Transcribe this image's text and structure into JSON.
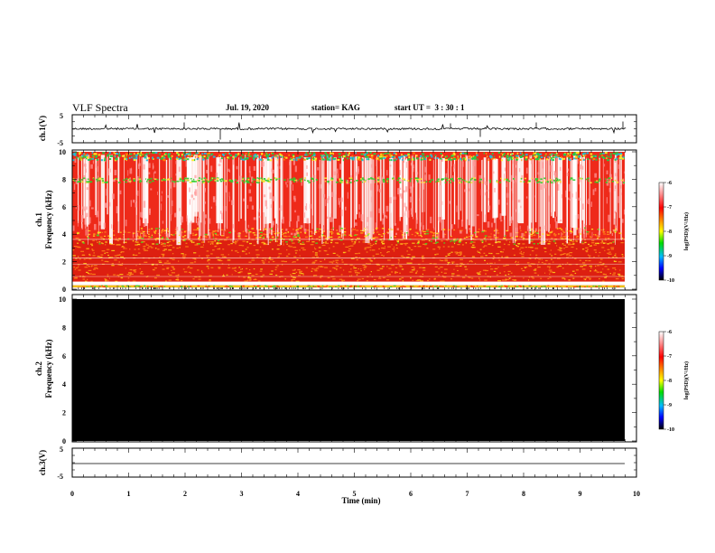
{
  "header": {
    "title": "VLF Spectra",
    "date": "Jul. 19, 2020",
    "station": "station= KAG",
    "start": "start UT =  3 : 30 : 1"
  },
  "chart_data": [
    {
      "type": "line",
      "panel": "ch1-waveform",
      "ylabel": "ch.1(V)",
      "yticks": [
        "5",
        "-5"
      ],
      "ylim": [
        -5,
        5
      ],
      "baseline": 0
    },
    {
      "type": "heatmap",
      "panel": "ch1-spectrogram",
      "ylabel_line1": "ch.1",
      "ylabel_line2": "Frequency (kHz)",
      "yticks": [
        "0",
        "2",
        "4",
        "6",
        "8",
        "10"
      ],
      "ylim": [
        0,
        10
      ],
      "xlim": [
        0,
        10
      ],
      "data_end_min": 9.83,
      "colorbar": {
        "label": "log(PSD)(V²/Hz)",
        "ticks": [
          "-6",
          "-7",
          "-8",
          "-9",
          "-10"
        ],
        "range": [
          -10,
          -6
        ]
      }
    },
    {
      "type": "heatmap",
      "panel": "ch2-spectrogram",
      "ylabel_line1": "ch.2",
      "ylabel_line2": "Frequency (kHz)",
      "yticks": [
        "0",
        "2",
        "4",
        "6",
        "8",
        "10"
      ],
      "ylim": [
        0,
        10
      ],
      "xlim": [
        0,
        10
      ],
      "data_end_min": 9.83,
      "fill_color": "#000000",
      "colorbar": {
        "label": "log(PSD)(V²/Hz)",
        "ticks": [
          "-6",
          "-7",
          "-8",
          "-9",
          "-10"
        ],
        "range": [
          -10,
          -6
        ]
      }
    },
    {
      "type": "line",
      "panel": "ch3-waveform",
      "ylabel": "ch.3(V)",
      "yticks": [
        "5",
        "-5"
      ],
      "ylim": [
        -5,
        5
      ],
      "baseline": 0,
      "xlabel": "Time (min)",
      "xticks": [
        "0",
        "1",
        "2",
        "3",
        "4",
        "5",
        "6",
        "7",
        "8",
        "9",
        "10"
      ],
      "xlim": [
        0,
        10
      ]
    }
  ]
}
